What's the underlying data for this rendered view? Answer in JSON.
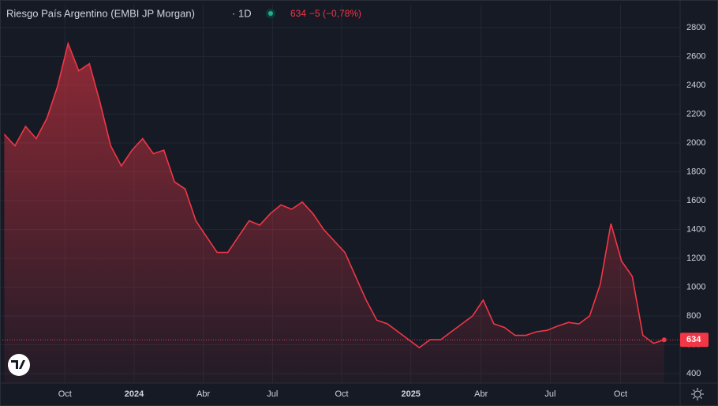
{
  "chart_data": {
    "type": "area",
    "title": "Riesgo País Argentino (EMBI JP Morgan)",
    "interval": "1D",
    "change": "−5 (−0,78%)",
    "series": [
      {
        "color": "#f23645",
        "values": [
          2060,
          1980,
          2115,
          2030,
          2170,
          2390,
          2690,
          2500,
          2550,
          2280,
          1980,
          1840,
          1950,
          2030,
          1925,
          1950,
          1730,
          1680,
          1460,
          1350,
          1240,
          1240,
          1350,
          1460,
          1430,
          1510,
          1570,
          1540,
          1590,
          1510,
          1400,
          1320,
          1240,
          1075,
          910,
          770,
          745,
          690,
          635,
          580,
          635,
          635,
          690,
          745,
          800,
          910,
          745,
          720,
          665,
          665,
          690,
          700,
          730,
          755,
          745,
          800,
          1020,
          1440,
          1180,
          1075,
          665,
          610,
          634
        ]
      }
    ],
    "xlim": [
      -0.4,
      63.5
    ],
    "xticks": [
      {
        "value": 5.7,
        "label": "Oct"
      },
      {
        "value": 12.2,
        "label": "2024"
      },
      {
        "value": 18.7,
        "label": "Abr"
      },
      {
        "value": 25.2,
        "label": "Jul"
      },
      {
        "value": 31.7,
        "label": "Oct"
      },
      {
        "value": 38.2,
        "label": "2025"
      },
      {
        "value": 44.8,
        "label": "Abr"
      },
      {
        "value": 51.3,
        "label": "Jul"
      },
      {
        "value": 57.9,
        "label": "Oct"
      }
    ],
    "ylim": [
      334,
      2964
    ],
    "yticks": [
      400,
      600,
      800,
      1000,
      1200,
      1400,
      1600,
      1800,
      2000,
      2200,
      2400,
      2600,
      2800
    ],
    "grid": true
  }
}
